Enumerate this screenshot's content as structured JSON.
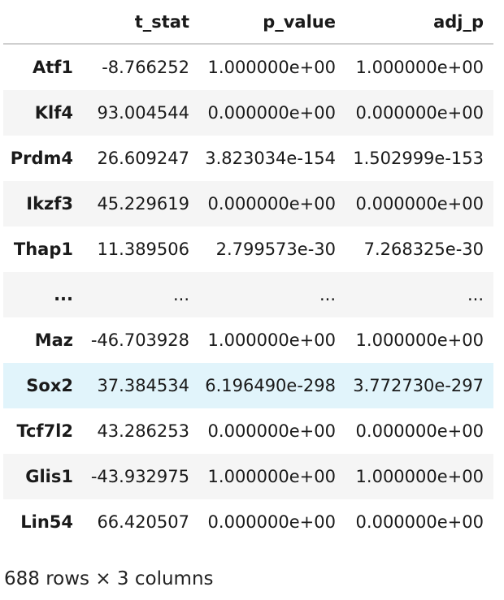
{
  "table": {
    "index_header": "",
    "columns": [
      "t_stat",
      "p_value",
      "adj_p"
    ],
    "rows": [
      {
        "index": "Atf1",
        "cells": [
          "-8.766252",
          "1.000000e+00",
          "1.000000e+00"
        ]
      },
      {
        "index": "Klf4",
        "cells": [
          "93.004544",
          "0.000000e+00",
          "0.000000e+00"
        ]
      },
      {
        "index": "Prdm4",
        "cells": [
          "26.609247",
          "3.823034e-154",
          "1.502999e-153"
        ]
      },
      {
        "index": "Ikzf3",
        "cells": [
          "45.229619",
          "0.000000e+00",
          "0.000000e+00"
        ]
      },
      {
        "index": "Thap1",
        "cells": [
          "11.389506",
          "2.799573e-30",
          "7.268325e-30"
        ]
      },
      {
        "index": "...",
        "cells": [
          "...",
          "...",
          "..."
        ]
      },
      {
        "index": "Maz",
        "cells": [
          "-46.703928",
          "1.000000e+00",
          "1.000000e+00"
        ]
      },
      {
        "index": "Sox2",
        "cells": [
          "37.384534",
          "6.196490e-298",
          "3.772730e-297"
        ]
      },
      {
        "index": "Tcf7l2",
        "cells": [
          "43.286253",
          "0.000000e+00",
          "0.000000e+00"
        ]
      },
      {
        "index": "Glis1",
        "cells": [
          "-43.932975",
          "1.000000e+00",
          "1.000000e+00"
        ]
      },
      {
        "index": "Lin54",
        "cells": [
          "66.420507",
          "0.000000e+00",
          "0.000000e+00"
        ]
      }
    ],
    "highlighted_row_index": 7
  },
  "footer": {
    "shape_text": "688 rows × 3 columns"
  },
  "colors": {
    "stripe": "#f5f5f5",
    "hover": "#e1f4fb",
    "header_rule": "#cfcfcf"
  }
}
